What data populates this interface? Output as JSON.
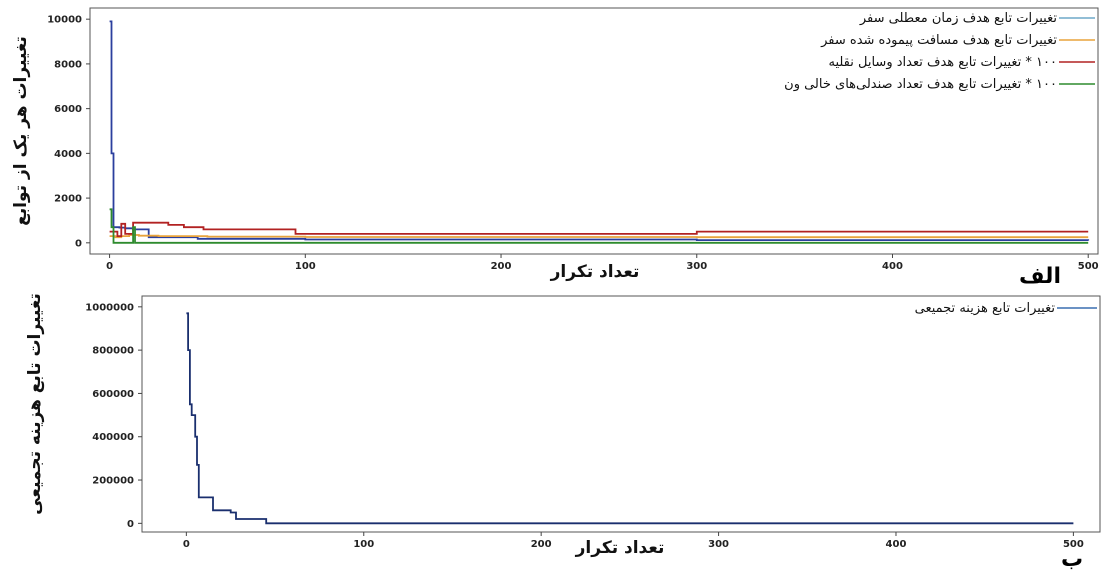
{
  "chart_data": [
    {
      "type": "line",
      "panel_label": "الف",
      "xlabel": "تعداد تکرار",
      "ylabel": "تغییرات هر یک از توابع",
      "xlim": [
        -10,
        505
      ],
      "ylim": [
        -500,
        10500
      ],
      "xticks": [
        0,
        100,
        200,
        300,
        400,
        500
      ],
      "yticks": [
        0,
        2000,
        4000,
        6000,
        8000,
        10000
      ],
      "legend_position": "top-right",
      "series": [
        {
          "name": "تغییرات تابع هدف زمان معطلی سفر",
          "color": "#2b3f9e",
          "legend_color": "#6fa8c8",
          "step": true,
          "x": [
            0,
            1,
            2,
            5,
            8,
            12,
            20,
            45,
            100,
            300,
            500
          ],
          "y": [
            9900,
            4000,
            700,
            680,
            650,
            600,
            250,
            180,
            150,
            120,
            100
          ]
        },
        {
          "name": "تغییرات تابع هدف مسافت پیموده شده سفر",
          "color": "#e8a33c",
          "legend_color": "#e8a33c",
          "step": true,
          "x": [
            0,
            3,
            6,
            10,
            15,
            25,
            50,
            100,
            300,
            500
          ],
          "y": [
            300,
            250,
            300,
            350,
            320,
            300,
            280,
            260,
            250,
            250
          ]
        },
        {
          "name": "۱۰۰ * تغییرات تابع هدف تعداد وسایل نقلیه",
          "color": "#b22222",
          "legend_color": "#b22222",
          "step": true,
          "x": [
            0,
            4,
            6,
            8,
            12,
            30,
            38,
            48,
            95,
            300,
            500
          ],
          "y": [
            500,
            300,
            850,
            400,
            900,
            800,
            700,
            600,
            400,
            500,
            500
          ]
        },
        {
          "name": "۱۰۰ * تغییرات تابع هدف تعداد صندلی‌های خالی ون",
          "color": "#2e8b2e",
          "legend_color": "#2e8b2e",
          "step": true,
          "x": [
            0,
            1,
            2,
            10,
            12,
            13,
            15,
            500
          ],
          "y": [
            1500,
            700,
            0,
            0,
            700,
            0,
            0,
            0
          ]
        }
      ]
    },
    {
      "type": "line",
      "panel_label": "ب",
      "xlabel": "تعداد تکرار",
      "ylabel": "تغییرات تابع هزینه تجمیعی",
      "xlim": [
        -25,
        515
      ],
      "ylim": [
        -40000,
        1050000
      ],
      "xticks": [
        0,
        100,
        200,
        300,
        400,
        500
      ],
      "yticks": [
        0,
        200000,
        400000,
        600000,
        800000,
        1000000
      ],
      "legend_position": "top-right",
      "series": [
        {
          "name": "تغییرات تابع هزینه تجمیعی",
          "color": "#1a2f6e",
          "legend_color": "#3a6fb0",
          "step": true,
          "x": [
            0,
            1,
            2,
            3,
            5,
            6,
            7,
            9,
            15,
            25,
            28,
            45,
            500
          ],
          "y": [
            970000,
            800000,
            550000,
            500000,
            400000,
            270000,
            120000,
            120000,
            60000,
            50000,
            20000,
            0,
            0
          ]
        }
      ]
    }
  ]
}
